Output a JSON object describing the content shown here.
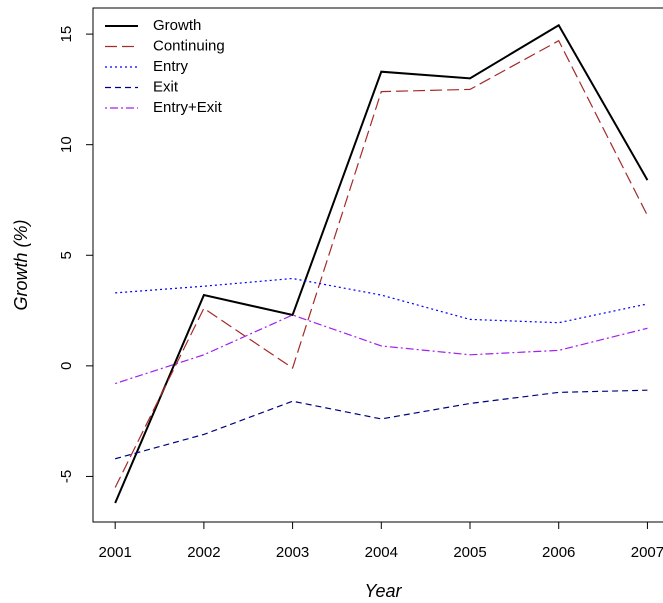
{
  "chart_data": {
    "type": "line",
    "xlabel": "Year",
    "ylabel": "Growth (%)",
    "x": [
      2001,
      2002,
      2003,
      2004,
      2005,
      2006,
      2007
    ],
    "series": [
      {
        "name": "Growth",
        "color": "#000000",
        "linestyle": "solid",
        "values": [
          -6.2,
          3.2,
          2.3,
          13.3,
          13.0,
          15.4,
          8.4
        ]
      },
      {
        "name": "Continuing",
        "color": "#a52a2a",
        "linestyle": "longdash",
        "values": [
          -5.5,
          2.6,
          -0.1,
          12.4,
          12.5,
          14.7,
          6.8
        ]
      },
      {
        "name": "Entry",
        "color": "#0000ff",
        "linestyle": "dotted",
        "values": [
          3.3,
          3.6,
          3.95,
          3.2,
          2.1,
          1.95,
          2.8
        ]
      },
      {
        "name": "Exit",
        "color": "#000080",
        "linestyle": "dashed",
        "values": [
          -4.2,
          -3.1,
          -1.6,
          -2.4,
          -1.7,
          -1.2,
          -1.1
        ]
      },
      {
        "name": "Entry+Exit",
        "color": "#a020f0",
        "linestyle": "dotdash",
        "values": [
          -0.8,
          0.5,
          2.3,
          0.9,
          0.5,
          0.7,
          1.7
        ]
      }
    ],
    "xlim": [
      2000.75,
      2007.25
    ],
    "xticks": [
      2001,
      2002,
      2003,
      2004,
      2005,
      2006,
      2007
    ],
    "ylim": [
      -7.06,
      16.18
    ],
    "yticks": [
      -5,
      0,
      5,
      10,
      15
    ],
    "legend": "top-left"
  }
}
